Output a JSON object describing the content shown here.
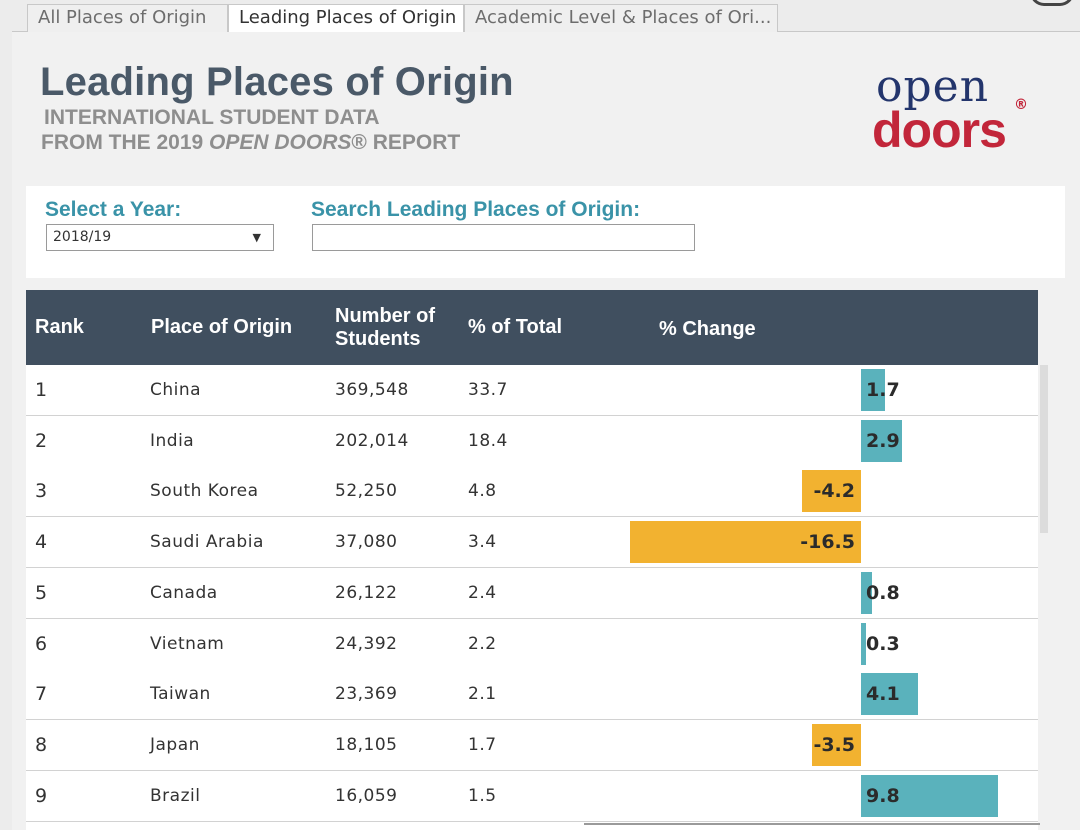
{
  "tabs": [
    "All Places of Origin",
    "Leading Places of Origin",
    "Academic Level & Places of Ori..."
  ],
  "header": {
    "title": "Leading Places of Origin",
    "subtitle1": "INTERNATIONAL STUDENT DATA",
    "subtitle2_pre": "FROM THE 2019 ",
    "subtitle2_em": "OPEN DOORS",
    "subtitle2_post": "® REPORT"
  },
  "logo": {
    "line1": "open",
    "line2": "doors",
    "reg": "®"
  },
  "filters": {
    "year_label": "Select a Year:",
    "year_value": "2018/19",
    "search_label": "Search Leading Places of Origin:",
    "search_value": ""
  },
  "table": {
    "columns": {
      "rank": "Rank",
      "place": "Place of Origin",
      "num_line1": "Number of",
      "num_line2": "Students",
      "pct": "% of Total",
      "change": "% Change"
    },
    "rows": [
      {
        "rank": "1",
        "place": "China",
        "students": "369,548",
        "pct": "33.7",
        "change": 1.7,
        "change_label": "1.7"
      },
      {
        "rank": "2",
        "place": "India",
        "students": "202,014",
        "pct": "18.4",
        "change": 2.9,
        "change_label": "2.9"
      },
      {
        "rank": "3",
        "place": "South Korea",
        "students": "52,250",
        "pct": "4.8",
        "change": -4.2,
        "change_label": "-4.2"
      },
      {
        "rank": "4",
        "place": "Saudi Arabia",
        "students": "37,080",
        "pct": "3.4",
        "change": -16.5,
        "change_label": "-16.5"
      },
      {
        "rank": "5",
        "place": "Canada",
        "students": "26,122",
        "pct": "2.4",
        "change": 0.8,
        "change_label": "0.8"
      },
      {
        "rank": "6",
        "place": "Vietnam",
        "students": "24,392",
        "pct": "2.2",
        "change": 0.3,
        "change_label": "0.3"
      },
      {
        "rank": "7",
        "place": "Taiwan",
        "students": "23,369",
        "pct": "2.1",
        "change": 4.1,
        "change_label": "4.1"
      },
      {
        "rank": "8",
        "place": "Japan",
        "students": "18,105",
        "pct": "1.7",
        "change": -3.5,
        "change_label": "-3.5"
      },
      {
        "rank": "9",
        "place": "Brazil",
        "students": "16,059",
        "pct": "1.5",
        "change": 9.8,
        "change_label": "9.8"
      }
    ]
  },
  "colors": {
    "positive": "#5ab2bc",
    "negative": "#f2b230",
    "header_bg": "#404f5f"
  }
}
